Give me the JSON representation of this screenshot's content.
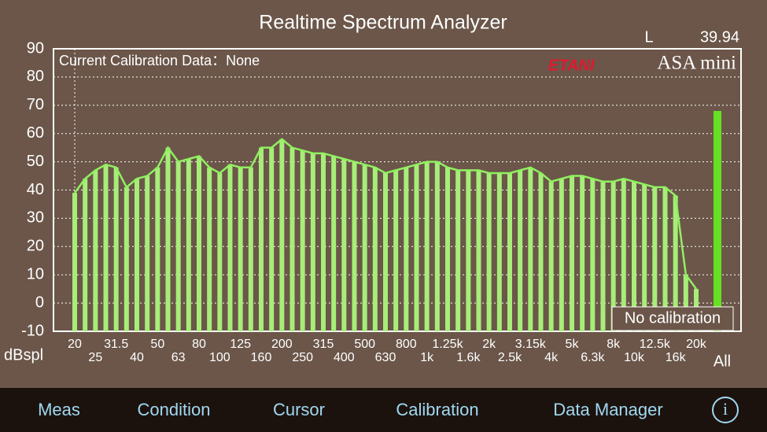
{
  "header": {
    "title": "Realtime Spectrum Analyzer",
    "channel": "L",
    "level": "39.94"
  },
  "logo": {
    "brand": "ETANI",
    "product": "ASA mini"
  },
  "calibration_note": "Current Calibration Data：None",
  "calibration_badge": "No calibration",
  "chart_data": {
    "type": "bar",
    "y_label": "dBspl",
    "categories": [
      "20",
      null,
      "25",
      null,
      "31.5",
      null,
      "40",
      null,
      "50",
      null,
      "63",
      null,
      "80",
      null,
      "100",
      null,
      "125",
      null,
      "160",
      null,
      "200",
      null,
      "250",
      null,
      "315",
      null,
      "400",
      null,
      "500",
      null,
      "630",
      null,
      "800",
      null,
      "1k",
      null,
      "1.25k",
      null,
      "1.6k",
      null,
      "2k",
      null,
      "2.5k",
      null,
      "3.15k",
      null,
      "4k",
      null,
      "5k",
      null,
      "6.3k",
      null,
      "8k",
      null,
      "10k",
      null,
      "12.5k",
      null,
      "16k",
      null,
      "20k"
    ],
    "values": [
      39,
      44,
      47,
      49,
      48,
      41,
      44,
      45,
      48,
      55,
      50,
      51,
      52,
      48,
      46,
      49,
      48,
      48,
      55,
      55,
      58,
      55,
      54,
      53,
      53,
      52,
      51,
      50,
      49,
      48,
      46,
      47,
      48,
      49,
      50,
      50,
      48,
      47,
      47,
      47,
      46,
      46,
      46,
      47,
      48,
      46,
      43,
      44,
      45,
      45,
      44,
      43,
      43,
      44,
      43,
      42,
      41,
      41,
      38,
      10,
      5
    ],
    "color": "#a6ee78",
    "line_color": "#90f060",
    "total": {
      "label": "All",
      "value": 68,
      "color": "#66e022"
    },
    "ylim": [
      -10,
      90
    ],
    "yticks": [
      -10,
      0,
      10,
      20,
      30,
      40,
      50,
      60,
      70,
      80,
      90
    ],
    "grid": true
  },
  "tabs": [
    "Meas",
    "Condition",
    "Cursor",
    "Calibration",
    "Data Manager"
  ],
  "info_icon": "i"
}
